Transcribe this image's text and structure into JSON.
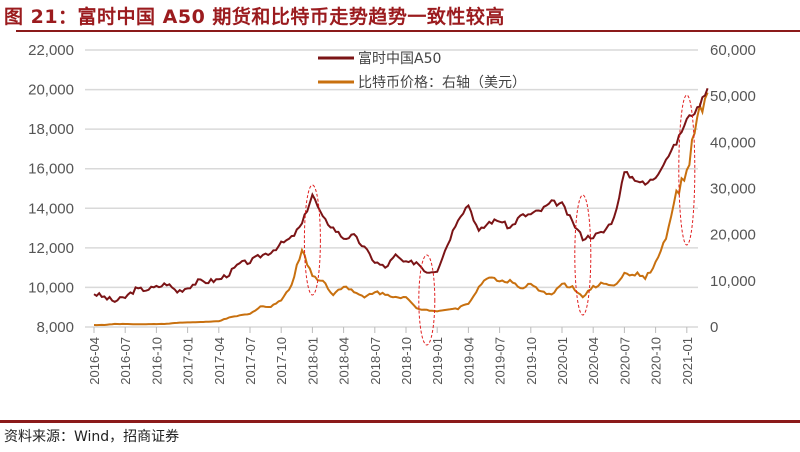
{
  "title": "图 21：富时中国 A50 期货和比特币走势趋势一致性较高",
  "source": "资料来源：Wind，招商证券",
  "chart_data": {
    "type": "line",
    "title": "图 21：富时中国 A50 期货和比特币走势趋势一致性较高",
    "x": [
      "2016-04",
      "2016-05",
      "2016-06",
      "2016-07",
      "2016-08",
      "2016-09",
      "2016-10",
      "2016-11",
      "2016-12",
      "2017-01",
      "2017-02",
      "2017-03",
      "2017-04",
      "2017-05",
      "2017-06",
      "2017-07",
      "2017-08",
      "2017-09",
      "2017-10",
      "2017-11",
      "2017-12",
      "2018-01",
      "2018-02",
      "2018-03",
      "2018-04",
      "2018-05",
      "2018-06",
      "2018-07",
      "2018-08",
      "2018-09",
      "2018-10",
      "2018-11",
      "2018-12",
      "2019-01",
      "2019-02",
      "2019-03",
      "2019-04",
      "2019-05",
      "2019-06",
      "2019-07",
      "2019-08",
      "2019-09",
      "2019-10",
      "2019-11",
      "2019-12",
      "2020-01",
      "2020-02",
      "2020-03",
      "2020-04",
      "2020-05",
      "2020-06",
      "2020-07",
      "2020-08",
      "2020-09",
      "2020-10",
      "2020-11",
      "2020-12",
      "2021-01",
      "2021-02",
      "2021-03"
    ],
    "x_tick_labels": [
      "2016-04",
      "2016-07",
      "2016-10",
      "2017-01",
      "2017-04",
      "2017-07",
      "2017-10",
      "2018-01",
      "2018-04",
      "2018-07",
      "2018-10",
      "2019-01",
      "2019-04",
      "2019-07",
      "2019-10",
      "2020-01",
      "2020-04",
      "2020-07",
      "2020-10",
      "2021-01"
    ],
    "y_left": {
      "range": [
        8000,
        22000
      ],
      "ticks": [
        "8,000",
        "10,000",
        "12,000",
        "14,000",
        "16,000",
        "18,000",
        "20,000",
        "22,000"
      ]
    },
    "y_right": {
      "range": [
        0,
        60000
      ],
      "ticks": [
        "0",
        "10,000",
        "20,000",
        "30,000",
        "40,000",
        "50,000",
        "60,000"
      ]
    },
    "grid": "horizontal",
    "legend": "top-center",
    "series": [
      {
        "name": "富时中国A50",
        "axis": "left",
        "color": "#7b1416",
        "values": [
          9700,
          9500,
          9300,
          9500,
          9900,
          9900,
          10000,
          10200,
          9800,
          10000,
          10300,
          10300,
          10400,
          10700,
          11200,
          11300,
          11600,
          11800,
          12200,
          12500,
          13200,
          14700,
          13500,
          13000,
          12500,
          12600,
          12000,
          11300,
          11000,
          11600,
          11200,
          11300,
          10800,
          10900,
          12200,
          13500,
          14200,
          12800,
          13300,
          13400,
          13000,
          13600,
          13700,
          13900,
          14300,
          14200,
          13300,
          12500,
          12600,
          12800,
          13500,
          15800,
          15500,
          15200,
          15600,
          16500,
          17300,
          18500,
          19000,
          20100
        ]
      },
      {
        "name": "比特币价格：右轴（美元）",
        "axis": "right",
        "color": "#c8700f",
        "values": [
          430,
          450,
          650,
          660,
          600,
          610,
          640,
          700,
          900,
          1000,
          1050,
          1100,
          1300,
          2000,
          2500,
          2800,
          4500,
          4300,
          6000,
          9000,
          17000,
          11000,
          10000,
          7000,
          9000,
          7500,
          6400,
          7700,
          7000,
          6600,
          6400,
          4000,
          3700,
          3500,
          3800,
          4000,
          5200,
          8500,
          11000,
          10000,
          10000,
          8300,
          9200,
          7500,
          7200,
          9300,
          8600,
          6400,
          8700,
          9500,
          9100,
          11300,
          11600,
          10700,
          13800,
          19000,
          29000,
          33000,
          45000,
          50000
        ]
      }
    ],
    "highlight_periods": [
      "2018-01",
      "2018-12",
      "2020-03",
      "2021-01"
    ]
  }
}
